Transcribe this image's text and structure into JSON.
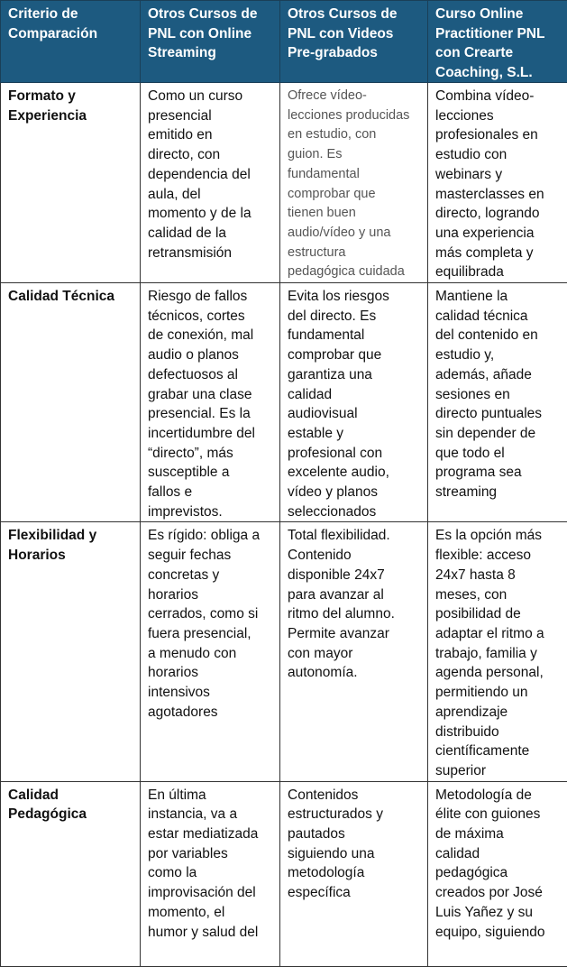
{
  "table": {
    "headers": [
      "Criterio de\nComparación",
      "Otros Cursos de\nPNL con Online\nStreaming",
      "Otros Cursos de\nPNL con Videos\nPre-grabados",
      "Curso Online\nPractitioner PNL\ncon Crearte\nCoaching, S.L."
    ],
    "rows": [
      {
        "criterion": "Formato y\nExperiencia",
        "streaming": "Como un curso\npresencial\nemitido en\ndirecto, con\ndependencia del\naula, del\nmomento y de la\ncalidad de la\nretransmisión",
        "pregrabados": "Ofrece vídeo-\nlecciones producidas\nen estudio, con\nguion. Es\nfundamental\ncomprobar que\ntienen buen\naudio/vídeo y una\nestructura\npedagógica cuidada",
        "crearte": "Combina vídeo-\nlecciones\nprofesionales en\nestudio con\nwebinars y\nmasterclasses en\ndirecto, logrando\nuna experiencia\nmás completa y\nequilibrada"
      },
      {
        "criterion": "Calidad Técnica",
        "streaming": "Riesgo de fallos\ntécnicos, cortes\nde conexión, mal\naudio o planos\ndefectuosos al\ngrabar una clase\npresencial. Es la\nincertidumbre del\n“directo”, más\nsusceptible a\nfallos e\nimprevistos.",
        "pregrabados": "Evita los riesgos\ndel directo. Es\nfundamental\ncomprobar que\ngarantiza una\ncalidad\naudiovisual\nestable y\nprofesional con\nexcelente audio,\nvídeo y planos\nseleccionados",
        "crearte": "Mantiene la\ncalidad técnica\ndel contenido en\nestudio y,\nademás, añade\nsesiones en\ndirecto puntuales\nsin depender de\nque todo el\nprograma sea\nstreaming"
      },
      {
        "criterion": "Flexibilidad y\nHorarios",
        "streaming": "Es rígido: obliga a\nseguir fechas\nconcretas y\nhorarios\ncerrados, como si\nfuera presencial,\na menudo con\nhorarios\nintensivos\nagotadores",
        "pregrabados": "Total flexibilidad.\nContenido\ndisponible 24x7\npara avanzar al\nritmo del alumno.\nPermite avanzar\ncon mayor\nautonomía.",
        "crearte": "Es la opción más\nflexible: acceso\n24x7 hasta 8\nmeses, con\nposibilidad de\nadaptar el ritmo a\ntrabajo, familia y\nagenda personal,\npermitiendo un\naprendizaje\ndistribuido\ncientíficamente\nsuperior"
      },
      {
        "criterion": "Calidad\nPedagógica",
        "streaming": "En última\ninstancia, va a\nestar mediatizada\npor variables\ncomo la\nimprovisación del\nmomento, el\nhumor y salud del",
        "pregrabados": "Contenidos\nestructurados y\npautados\nsiguiendo una\nmetodología\nespecífica",
        "crearte": "Metodología de\nélite con guiones\nde máxima\ncalidad\npedagógica\ncreados por José\nLuis Yañez y su\nequipo, siguiendo"
      }
    ]
  },
  "colors": {
    "header_bg": "#1d5a80",
    "header_text": "#ffffff",
    "border": "#333333"
  }
}
